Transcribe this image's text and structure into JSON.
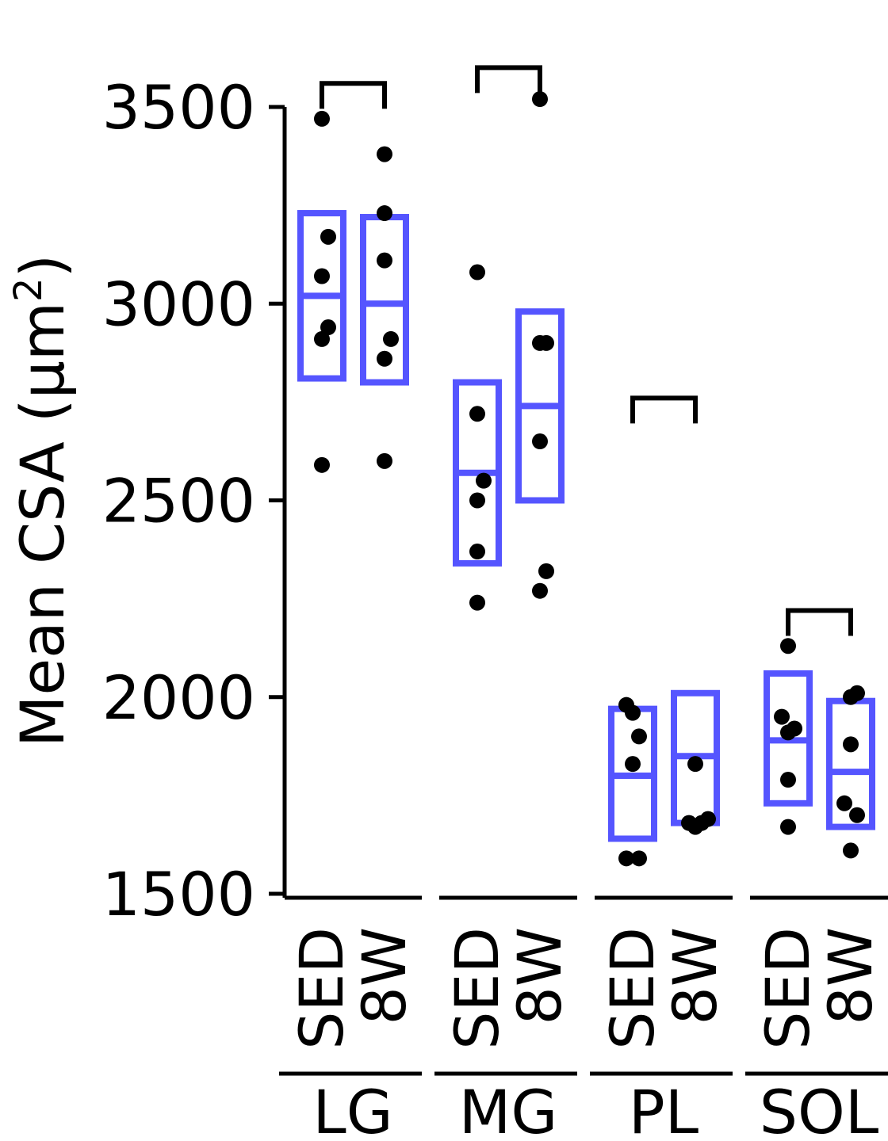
{
  "chart_data": {
    "type": "scatter",
    "subtype": "dot-plot with mean ± SE boxes",
    "ylabel": "Mean CSA (μm²)",
    "ylabel_main": "Mean CSA (",
    "ylabel_unit": "μm",
    "ylabel_sup": "2",
    "ylabel_close": ")",
    "ylim": [
      1500,
      3500
    ],
    "yticks": [
      1500,
      2000,
      2500,
      3000,
      3500
    ],
    "ytick_labels": [
      "1500",
      "2000",
      "2500",
      "3000",
      "3500"
    ],
    "groups": [
      "LG",
      "MG",
      "PL",
      "SOL"
    ],
    "conditions": [
      "SED",
      "8W"
    ],
    "box_color": "#5555ff",
    "point_color": "#000000",
    "series": [
      {
        "group": "LG",
        "condition": "SED",
        "mean": 3020,
        "box_low": 2810,
        "box_high": 3230,
        "points": [
          [
            0.0,
            3470
          ],
          [
            0.1,
            3170
          ],
          [
            0.0,
            3070
          ],
          [
            0.1,
            2940
          ],
          [
            0.0,
            2910
          ],
          [
            0.0,
            2590
          ]
        ]
      },
      {
        "group": "LG",
        "condition": "8W",
        "mean": 3000,
        "box_low": 2800,
        "box_high": 3220,
        "points": [
          [
            0.0,
            3380
          ],
          [
            0.0,
            3230
          ],
          [
            0.0,
            3110
          ],
          [
            0.1,
            2910
          ],
          [
            0.0,
            2860
          ],
          [
            0.0,
            2600
          ]
        ]
      },
      {
        "group": "MG",
        "condition": "SED",
        "mean": 2570,
        "box_low": 2340,
        "box_high": 2800,
        "points": [
          [
            0.0,
            3080
          ],
          [
            0.0,
            2720
          ],
          [
            0.1,
            2550
          ],
          [
            0.0,
            2500
          ],
          [
            0.0,
            2370
          ],
          [
            0.0,
            2240
          ]
        ]
      },
      {
        "group": "MG",
        "condition": "8W",
        "mean": 2740,
        "box_low": 2500,
        "box_high": 2980,
        "points": [
          [
            0.0,
            3520
          ],
          [
            0.0,
            2900
          ],
          [
            0.1,
            2900
          ],
          [
            0.0,
            2650
          ],
          [
            0.1,
            2320
          ],
          [
            0.0,
            2270
          ]
        ]
      },
      {
        "group": "PL",
        "condition": "SED",
        "mean": 1800,
        "box_low": 1640,
        "box_high": 1970,
        "points": [
          [
            -0.1,
            1980
          ],
          [
            0.0,
            1960
          ],
          [
            0.1,
            1900
          ],
          [
            0.0,
            1830
          ],
          [
            -0.1,
            1590
          ],
          [
            0.1,
            1590
          ]
        ]
      },
      {
        "group": "PL",
        "condition": "8W",
        "mean": 1850,
        "box_low": 1680,
        "box_high": 2010,
        "points": [
          [
            0.0,
            1830
          ],
          [
            -0.1,
            1680
          ],
          [
            0.0,
            1670
          ],
          [
            0.1,
            1680
          ],
          [
            0.2,
            1690
          ]
        ]
      },
      {
        "group": "SOL",
        "condition": "SED",
        "mean": 1890,
        "box_low": 1730,
        "box_high": 2060,
        "points": [
          [
            0.0,
            2130
          ],
          [
            -0.1,
            1950
          ],
          [
            0.1,
            1920
          ],
          [
            0.0,
            1910
          ],
          [
            0.0,
            1790
          ],
          [
            0.0,
            1670
          ]
        ]
      },
      {
        "group": "SOL",
        "condition": "8W",
        "mean": 1810,
        "box_low": 1670,
        "box_high": 1990,
        "points": [
          [
            0.0,
            2000
          ],
          [
            0.1,
            2010
          ],
          [
            0.0,
            1880
          ],
          [
            -0.1,
            1730
          ],
          [
            0.1,
            1700
          ],
          [
            0.0,
            1610
          ]
        ]
      }
    ],
    "brackets": [
      {
        "group": "LG",
        "y": 3560
      },
      {
        "group": "MG",
        "y": 3600
      },
      {
        "group": "PL",
        "y": 2760
      },
      {
        "group": "SOL",
        "y": 2220
      }
    ]
  }
}
